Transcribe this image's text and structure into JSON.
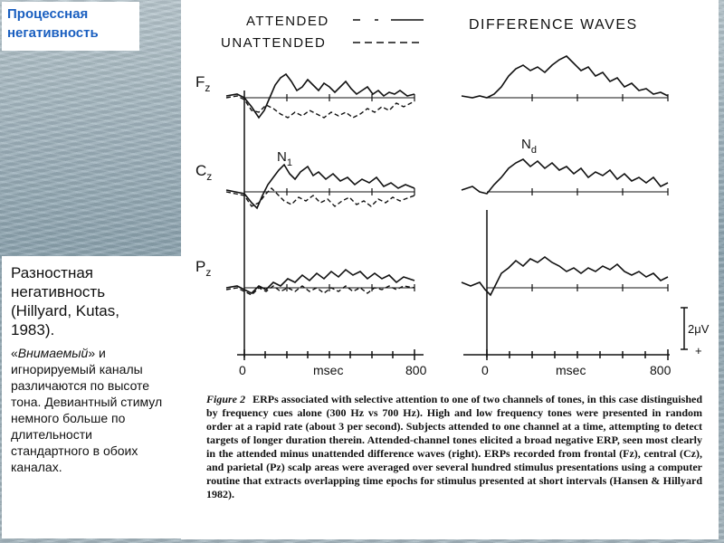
{
  "slide": {
    "title_lines": [
      "Процессная",
      "негативность"
    ],
    "side_heading_lines": [
      "Разностная",
      "негативность",
      "(Hillyard, Kutas,",
      "1983)."
    ],
    "side_quote_open": "«",
    "side_quote_word": "Внимаемый",
    "side_quote_rest": "» и игнорируемый каналы различаются по высоте тона. Девиантный стимул немного больше по длительности стандартного в обоих каналах."
  },
  "figure": {
    "legend_attended": "ATTENDED",
    "legend_unattended": "UNATTENDED",
    "right_title": "DIFFERENCE WAVES",
    "channel_fz": "F",
    "channel_fz_sub": "z",
    "channel_cz": "C",
    "channel_cz_sub": "z",
    "channel_pz": "P",
    "channel_pz_sub": "z",
    "label_n1": "N",
    "label_n1_sub": "1",
    "label_nd": "N",
    "label_nd_sub": "d",
    "axis_left_start": "0",
    "axis_left_unit": "msec",
    "axis_left_end": "800",
    "axis_right_start": "0",
    "axis_right_unit": "msec",
    "axis_right_end": "800",
    "scale_value": "2μV",
    "scale_sign": "+",
    "caption_label": "Figure 2",
    "caption_text": "ERPs associated with selective attention to one of two channels of tones, in this case distinguished by frequency cues alone (300 Hz vs 700 Hz). High and low frequency tones were presented in random order at a rapid rate (about 3 per second). Subjects attended to one channel at a time, attempting to detect targets of longer duration therein. Attended-channel tones elicited a broad negative ERP, seen most clearly in the attended minus unattended difference waves (right). ERPs recorded from frontal (Fz), central (Cz), and parietal (Pz) scalp areas were averaged over several hundred stimulus presentations using a computer routine that extracts overlapping time epochs for stimulus presented at short intervals (Hansen & Hillyard 1982)."
  }
}
